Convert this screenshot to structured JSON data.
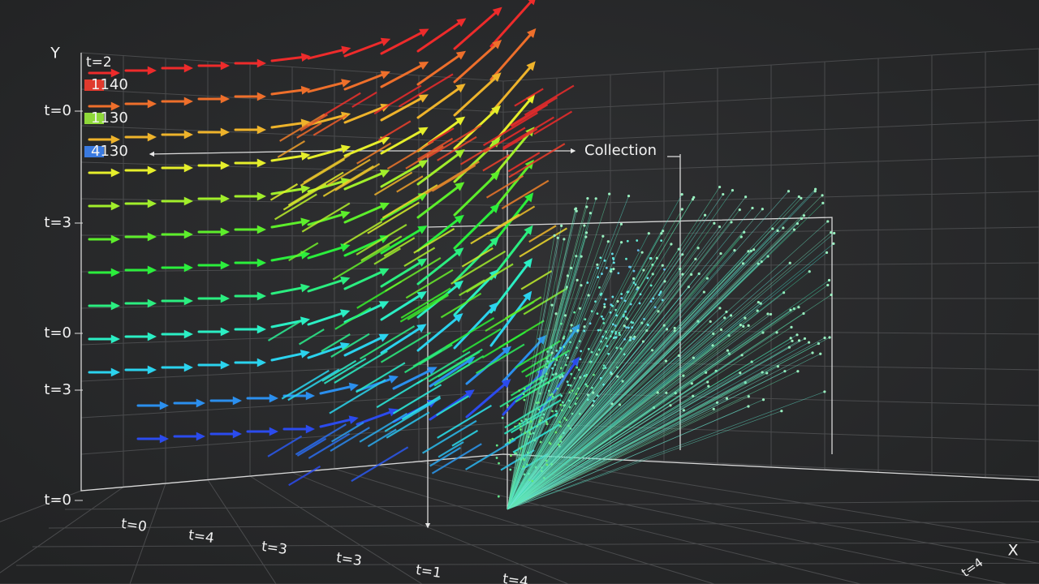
{
  "axes": {
    "y_label": "Y",
    "x_label": "X",
    "y_ticks": [
      "t=0",
      "t=3",
      "t=0",
      "t=3",
      "t=0"
    ],
    "x_ticks": [
      "t=0",
      "t=4",
      "t=3",
      "t=3",
      "t=1",
      "t=4"
    ],
    "z_ticks": [
      "t=4"
    ]
  },
  "legend": {
    "title": "t=2",
    "items": [
      {
        "label": "1140",
        "color": "#e03a2e"
      },
      {
        "label": "1130",
        "color": "#8fd83a"
      },
      {
        "label": "4130",
        "color": "#3a7ae0"
      }
    ]
  },
  "annotation": "Collection"
}
